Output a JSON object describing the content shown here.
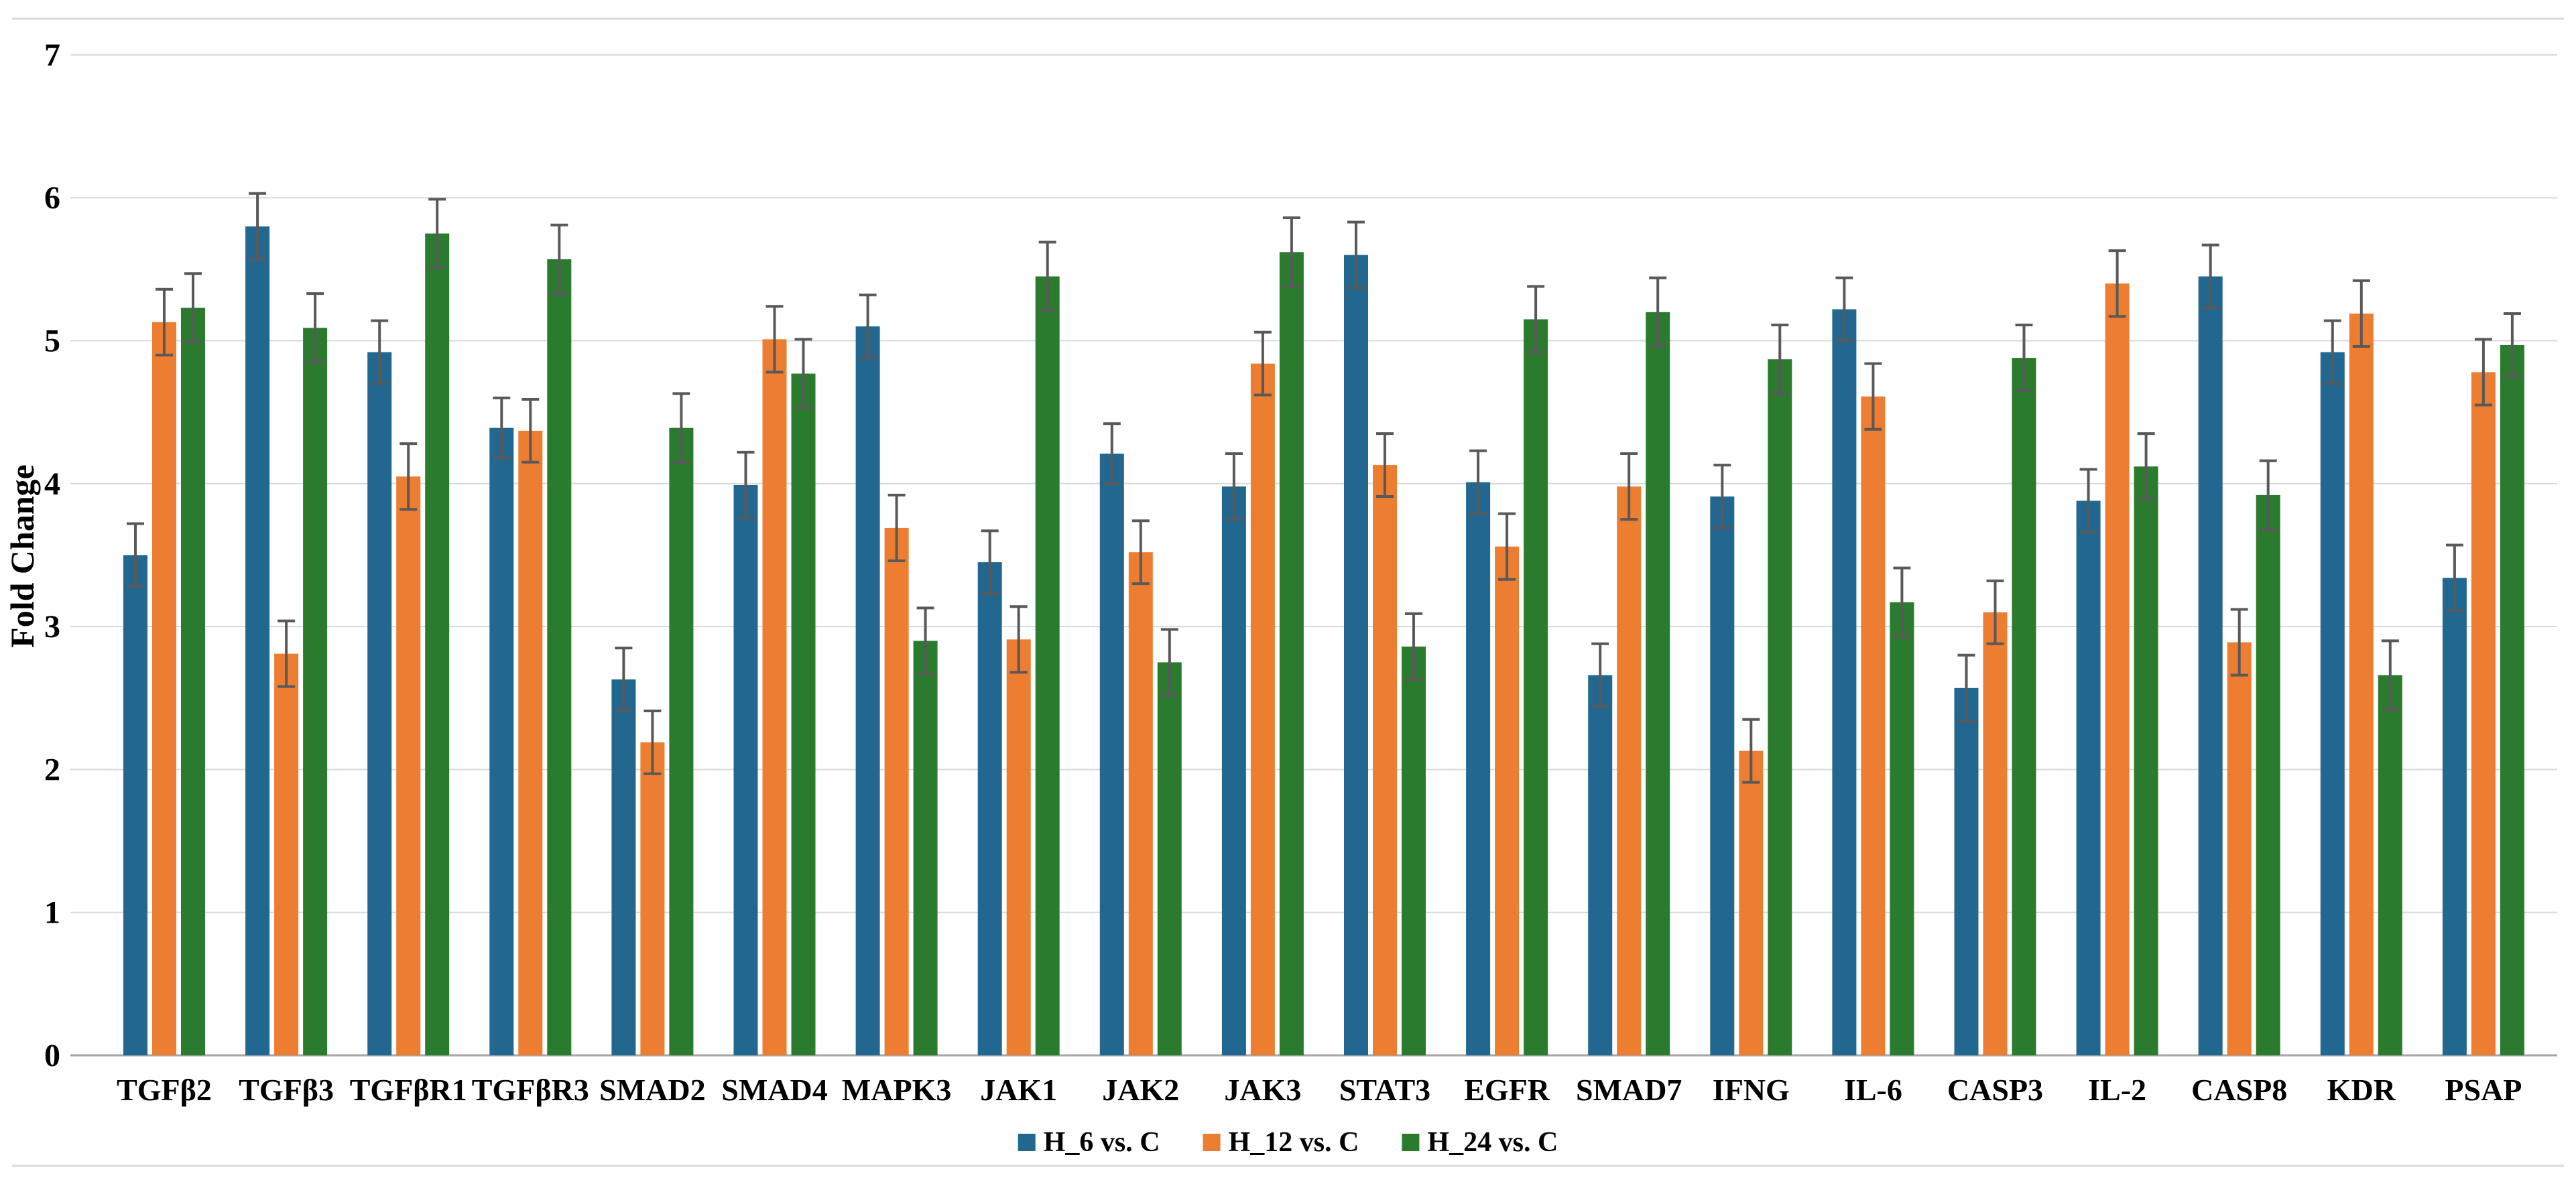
{
  "chart_data": {
    "type": "bar",
    "title": "",
    "xlabel": "",
    "ylabel": "Fold Change",
    "ylim": [
      0,
      7
    ],
    "y_tick_step": 1,
    "y_tick_labels": [
      "0",
      "1",
      "2",
      "3",
      "4",
      "5",
      "6",
      "7"
    ],
    "grid": true,
    "legend_position": "bottom",
    "error_bars": true,
    "categories": [
      "TGFβ2",
      "TGFβ3",
      "TGFβR1",
      "TGFβR3",
      "SMAD2",
      "SMAD4",
      "MAPK3",
      "JAK1",
      "JAK2",
      "JAK3",
      "STAT3",
      "EGFR",
      "SMAD7",
      "IFNG",
      "IL-6",
      "CASP3",
      "IL-2",
      "CASP8",
      "KDR",
      "PSAP"
    ],
    "series": [
      {
        "name": "H_6 vs. C",
        "color": "#21678F",
        "values": [
          3.5,
          5.8,
          4.92,
          4.39,
          2.63,
          3.99,
          5.1,
          3.45,
          4.21,
          3.98,
          5.6,
          4.01,
          2.66,
          3.91,
          5.22,
          2.57,
          3.88,
          5.45,
          4.92,
          3.34
        ],
        "errors": [
          0.22,
          0.23,
          0.22,
          0.21,
          0.22,
          0.23,
          0.22,
          0.22,
          0.21,
          0.23,
          0.23,
          0.22,
          0.22,
          0.22,
          0.22,
          0.23,
          0.22,
          0.22,
          0.22,
          0.23
        ]
      },
      {
        "name": "H_12 vs. C",
        "color": "#ED7D31",
        "values": [
          5.13,
          2.81,
          4.05,
          4.37,
          2.19,
          5.01,
          3.69,
          2.91,
          3.52,
          4.84,
          4.13,
          3.56,
          3.98,
          2.13,
          4.61,
          3.1,
          5.4,
          2.89,
          5.19,
          4.78
        ],
        "errors": [
          0.23,
          0.23,
          0.23,
          0.22,
          0.22,
          0.23,
          0.23,
          0.23,
          0.22,
          0.22,
          0.22,
          0.23,
          0.23,
          0.22,
          0.23,
          0.22,
          0.23,
          0.23,
          0.23,
          0.23
        ]
      },
      {
        "name": "H_24 vs. C",
        "color": "#2B7B2F",
        "values": [
          5.23,
          5.09,
          5.75,
          5.57,
          4.39,
          4.77,
          2.9,
          5.45,
          2.75,
          5.62,
          2.86,
          5.15,
          5.2,
          4.87,
          3.17,
          4.88,
          4.12,
          3.92,
          2.66,
          4.97
        ],
        "errors": [
          0.24,
          0.24,
          0.24,
          0.24,
          0.24,
          0.24,
          0.23,
          0.24,
          0.23,
          0.24,
          0.23,
          0.23,
          0.24,
          0.24,
          0.24,
          0.23,
          0.23,
          0.24,
          0.24,
          0.22
        ]
      }
    ],
    "style": {
      "background": "#ffffff",
      "grid_color": "#d9d9d9",
      "baseline_color": "#a6a6a6",
      "error_bar_color": "#595959",
      "border_line_color": "#dadada",
      "text_color": "#000000"
    }
  }
}
